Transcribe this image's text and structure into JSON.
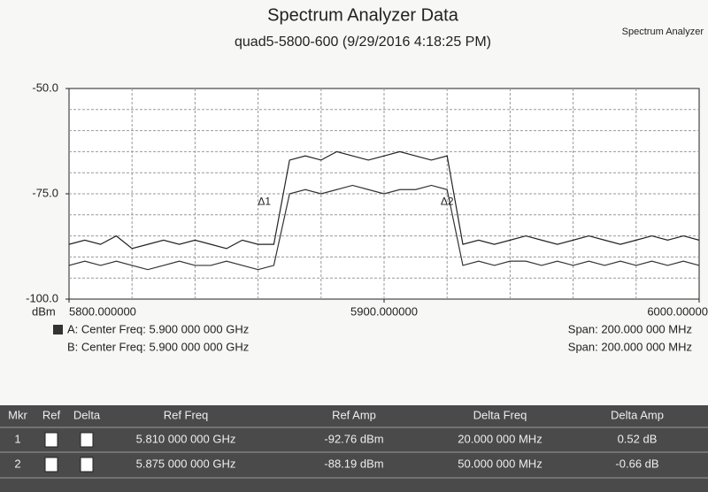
{
  "header": {
    "title": "Spectrum Analyzer Data",
    "subtitle": "quad5-5800-600 (9/29/2016 4:18:25 PM)",
    "app_name": "Spectrum Analyzer"
  },
  "chart_data": {
    "type": "line",
    "ylabel": "dBm",
    "x": [
      5800,
      5805,
      5810,
      5815,
      5820,
      5825,
      5830,
      5835,
      5840,
      5845,
      5850,
      5855,
      5860,
      5865,
      5870,
      5875,
      5880,
      5885,
      5890,
      5895,
      5900,
      5905,
      5910,
      5915,
      5920,
      5925,
      5930,
      5935,
      5940,
      5945,
      5950,
      5955,
      5960,
      5965,
      5970,
      5975,
      5980,
      5985,
      5990,
      5995,
      6000
    ],
    "series": [
      {
        "name": "A",
        "color": "#222222",
        "values": [
          -87,
          -86,
          -87,
          -85,
          -88,
          -87,
          -86,
          -87,
          -86,
          -87,
          -88,
          -86,
          -87,
          -87,
          -67,
          -66,
          -67,
          -65,
          -66,
          -67,
          -66,
          -65,
          -66,
          -67,
          -66,
          -87,
          -86,
          -87,
          -86,
          -85,
          -86,
          -87,
          -86,
          -85,
          -86,
          -87,
          -86,
          -85,
          -86,
          -85,
          -86
        ]
      },
      {
        "name": "B",
        "color": "#333333",
        "values": [
          -92,
          -91,
          -92,
          -91,
          -92,
          -93,
          -92,
          -91,
          -92,
          -92,
          -91,
          -92,
          -93,
          -92,
          -75,
          -74,
          -75,
          -74,
          -73,
          -74,
          -75,
          -74,
          -74,
          -73,
          -74,
          -92,
          -91,
          -92,
          -91,
          -91,
          -92,
          -91,
          -92,
          -91,
          -92,
          -91,
          -92,
          -91,
          -92,
          -91,
          -92
        ]
      }
    ],
    "xlim": [
      5800,
      6000
    ],
    "xticks": [
      {
        "value": 5800,
        "label": "5800.000000"
      },
      {
        "value": 5900,
        "label": "5900.000000"
      },
      {
        "value": 6000,
        "label": "6000.00000"
      }
    ],
    "ylim": [
      -100,
      -50
    ],
    "yticks": [
      {
        "value": -100,
        "label": "-100.0"
      },
      {
        "value": -75,
        "label": "-75.0"
      },
      {
        "value": -50,
        "label": "-50.0"
      }
    ],
    "grid": true,
    "annotations": [
      {
        "text": "Δ1",
        "x": 5862,
        "y": -77
      },
      {
        "text": "Δ2",
        "x": 5920,
        "y": -77
      }
    ]
  },
  "legend": {
    "a": "A: Center Freq: 5.900 000 000 GHz",
    "b": "B: Center Freq: 5.900 000 000 GHz",
    "span_a": "Span: 200.000 000 MHz",
    "span_b": "Span: 200.000 000 MHz"
  },
  "table": {
    "headers": [
      "Mkr",
      "Ref",
      "Delta",
      "Ref Freq",
      "Ref Amp",
      "Delta Freq",
      "Delta Amp"
    ],
    "rows": [
      {
        "mkr": "1",
        "ref_freq": "5.810 000 000 GHz",
        "ref_amp": "-92.76 dBm",
        "delta_freq": "20.000 000 MHz",
        "delta_amp": "0.52 dB"
      },
      {
        "mkr": "2",
        "ref_freq": "5.875 000 000 GHz",
        "ref_amp": "-88.19 dBm",
        "delta_freq": "50.000 000 MHz",
        "delta_amp": "-0.66 dB"
      }
    ]
  }
}
